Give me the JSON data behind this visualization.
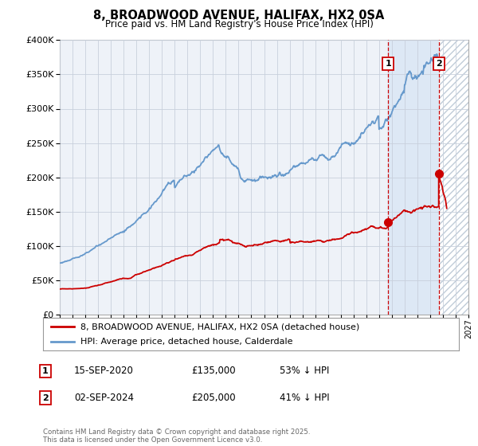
{
  "title": "8, BROADWOOD AVENUE, HALIFAX, HX2 0SA",
  "subtitle": "Price paid vs. HM Land Registry's House Price Index (HPI)",
  "legend_label_red": "8, BROADWOOD AVENUE, HALIFAX, HX2 0SA (detached house)",
  "legend_label_blue": "HPI: Average price, detached house, Calderdale",
  "red_color": "#cc0000",
  "blue_color": "#6699cc",
  "annotation1_label": "1",
  "annotation1_date": "15-SEP-2020",
  "annotation1_price": "£135,000",
  "annotation1_hpi": "53% ↓ HPI",
  "annotation1_year": 2020.71,
  "annotation1_value": 135000,
  "annotation2_label": "2",
  "annotation2_date": "02-SEP-2024",
  "annotation2_price": "£205,000",
  "annotation2_hpi": "41% ↓ HPI",
  "annotation2_year": 2024.67,
  "annotation2_value": 205000,
  "ylim": [
    0,
    400000
  ],
  "xlim_start": 1995,
  "xlim_end": 2027,
  "footer": "Contains HM Land Registry data © Crown copyright and database right 2025.\nThis data is licensed under the Open Government Licence v3.0.",
  "background_color": "#ffffff",
  "plot_bg_color": "#eef2f8",
  "grid_color": "#c8d0dc",
  "vline_color": "#cc0000",
  "shade_color": "#dde8f5",
  "hatch_color": "#c0ccd8"
}
